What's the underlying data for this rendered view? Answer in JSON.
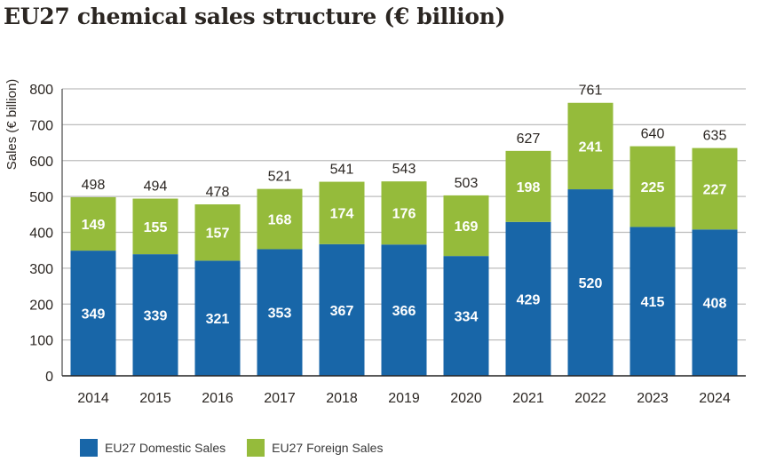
{
  "chart_data": {
    "type": "bar",
    "stacked": true,
    "title": "EU27 chemical sales structure (€ billion)",
    "xlabel": "",
    "ylabel": "Sales (€ billion)",
    "ylim": [
      0,
      800
    ],
    "yticks": [
      0,
      100,
      200,
      300,
      400,
      500,
      600,
      700,
      800
    ],
    "grid": true,
    "legend_position": "bottom-left",
    "categories": [
      "2014",
      "2015",
      "2016",
      "2017",
      "2018",
      "2019",
      "2020",
      "2021",
      "2022",
      "2023",
      "2024"
    ],
    "series": [
      {
        "name": "EU27 Domestic Sales",
        "color": "#1866a8",
        "values": [
          349,
          339,
          321,
          353,
          367,
          366,
          334,
          429,
          520,
          415,
          408
        ]
      },
      {
        "name": "EU27 Foreign Sales",
        "color": "#95bb3b",
        "values": [
          149,
          155,
          157,
          168,
          174,
          176,
          169,
          198,
          241,
          225,
          227
        ]
      }
    ],
    "totals": [
      498,
      494,
      478,
      521,
      541,
      543,
      503,
      627,
      761,
      640,
      635
    ]
  }
}
